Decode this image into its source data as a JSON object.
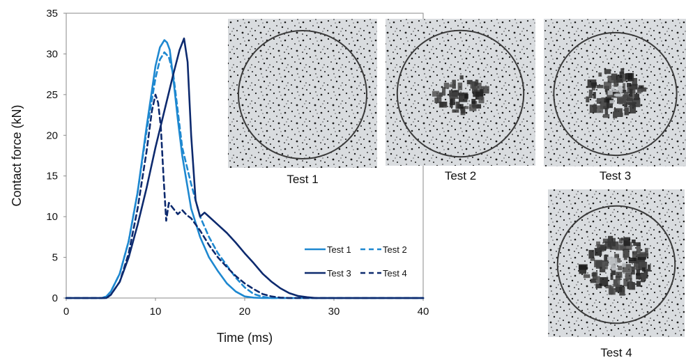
{
  "chart_data": {
    "type": "line",
    "xlabel": "Time (ms)",
    "ylabel": "Contact force (kN)",
    "xlim": [
      0,
      40
    ],
    "ylim": [
      0,
      35
    ],
    "x_ticks": [
      "0",
      "10",
      "20",
      "30",
      "40"
    ],
    "y_ticks": [
      "0",
      "5",
      "10",
      "15",
      "20",
      "25",
      "30",
      "35"
    ],
    "grid": false,
    "legend_position": "inside lower-right",
    "series": [
      {
        "name": "Test 1",
        "color": "#1e88d0",
        "dash": "solid",
        "x": [
          0,
          4,
          4.5,
          5,
          6,
          7,
          8,
          9,
          10,
          10.5,
          11,
          11.3,
          11.6,
          12,
          12.5,
          13,
          14,
          15,
          16,
          17,
          18,
          19,
          20,
          21,
          22,
          40
        ],
        "y": [
          0,
          0,
          0.2,
          0.8,
          3,
          7,
          13,
          21,
          28.5,
          30.8,
          31.7,
          31.4,
          30.5,
          27,
          22,
          17.5,
          11,
          7.5,
          5,
          3.3,
          1.8,
          0.8,
          0.2,
          0.05,
          0,
          0
        ]
      },
      {
        "name": "Test 2",
        "color": "#1e88d0",
        "dash": "dashed",
        "x": [
          0,
          4,
          4.5,
          5,
          6,
          7,
          8,
          9,
          10,
          10.5,
          11,
          11.5,
          12,
          12.5,
          13,
          14,
          15,
          16,
          17,
          18,
          19,
          20,
          21,
          22,
          23,
          40
        ],
        "y": [
          0,
          0,
          0.2,
          0.8,
          3,
          7,
          13,
          20.5,
          27,
          29.3,
          30.2,
          29.6,
          27.5,
          23,
          18.5,
          14,
          10,
          7.5,
          5.5,
          4,
          2.5,
          1.3,
          0.5,
          0.15,
          0,
          0
        ]
      },
      {
        "name": "Test 3",
        "color": "#0d2a6e",
        "dash": "solid",
        "x": [
          0,
          4.5,
          5,
          6,
          7,
          8,
          9,
          10,
          11,
          12,
          12.7,
          13.2,
          13.6,
          14,
          14.5,
          15,
          15.5,
          16,
          17,
          18,
          19,
          20,
          21,
          22,
          23,
          24,
          25,
          26,
          27,
          28,
          40
        ],
        "y": [
          0,
          0,
          0.4,
          2,
          5,
          9,
          13.5,
          18.5,
          23,
          27.5,
          30.5,
          31.9,
          29,
          20,
          12,
          10,
          10.5,
          10,
          9,
          8,
          6.8,
          5.5,
          4.3,
          3,
          2,
          1.2,
          0.6,
          0.25,
          0.1,
          0,
          0
        ]
      },
      {
        "name": "Test 4",
        "color": "#0d2a6e",
        "dash": "dashed",
        "x": [
          0,
          4.5,
          5,
          6,
          7,
          8,
          9,
          9.6,
          10,
          10.3,
          10.6,
          10.9,
          11.2,
          11.5,
          12,
          12.5,
          13,
          13.5,
          14,
          15,
          16,
          17,
          18,
          19,
          20,
          21,
          22,
          23,
          24,
          25,
          40
        ],
        "y": [
          0,
          0,
          0.4,
          2,
          5.5,
          11,
          18,
          23,
          25,
          24,
          21,
          15,
          9.5,
          11.7,
          11,
          10.3,
          10.8,
          10.2,
          9.8,
          8.3,
          6.5,
          5,
          3.8,
          2.7,
          1.8,
          1.1,
          0.5,
          0.2,
          0.05,
          0,
          0
        ]
      }
    ]
  },
  "photos": [
    {
      "label": "Test 1",
      "damage": 0
    },
    {
      "label": "Test 2",
      "damage": 1
    },
    {
      "label": "Test 3",
      "damage": 2
    },
    {
      "label": "Test 4",
      "damage": 3
    }
  ]
}
